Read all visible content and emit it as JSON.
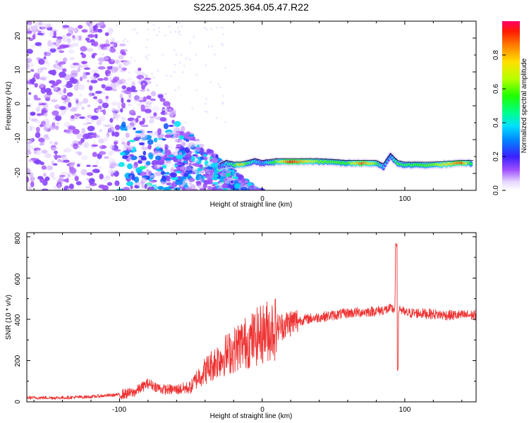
{
  "title": "S225.2025.364.05.47.R22",
  "chart_data": [
    {
      "type": "heatmap",
      "title": "S225.2025.364.05.47.R22",
      "xlabel": "Height of straight line (km)",
      "ylabel": "Frequency (Hz)",
      "xlim": [
        -165,
        150
      ],
      "ylim": [
        -25,
        25
      ],
      "xticks": [
        "-100",
        "0",
        "100"
      ],
      "yticks": [
        "-20",
        "-10",
        "0",
        "10",
        "20"
      ],
      "ridge": {
        "x": [
          -30,
          -25,
          -20,
          -15,
          -10,
          -5,
          0,
          10,
          20,
          40,
          60,
          70,
          80,
          85,
          90,
          95,
          100,
          120,
          140,
          148
        ],
        "y": [
          -18,
          -17,
          -17.5,
          -17.5,
          -17,
          -16.5,
          -17,
          -16.5,
          -16.5,
          -16.5,
          -17,
          -17,
          -17,
          -18,
          -15,
          -17,
          -17.5,
          -17.5,
          -17,
          -17
        ],
        "amp": [
          0.25,
          0.4,
          0.5,
          0.8,
          0.5,
          0.4,
          0.3,
          0.6,
          0.95,
          0.6,
          0.55,
          0.9,
          0.6,
          0.35,
          0.3,
          0.55,
          0.5,
          0.6,
          0.9,
          0.4
        ]
      },
      "colorbar": {
        "label": "Normalized spectral amplitude",
        "ticks": [
          "0.0",
          "0.2",
          "0.4",
          "0.6",
          "0.8"
        ],
        "range": [
          0,
          1
        ]
      }
    },
    {
      "type": "line",
      "xlabel": "Height of straight line (km)",
      "ylabel": "SNR (10 * v/v)",
      "xlim": [
        -165,
        150
      ],
      "ylim": [
        0,
        820
      ],
      "xticks": [
        "-100",
        "0",
        "100"
      ],
      "yticks": [
        "0",
        "200",
        "400",
        "600",
        "800"
      ],
      "series": [
        {
          "name": "SNR",
          "color": "#ee3333",
          "x": [
            -165,
            -140,
            -120,
            -100,
            -90,
            -80,
            -70,
            -60,
            -50,
            -45,
            -40,
            -35,
            -30,
            -25,
            -20,
            -15,
            -10,
            -5,
            0,
            5,
            10,
            15,
            20,
            30,
            40,
            50,
            60,
            70,
            80,
            90,
            93,
            94,
            95,
            96,
            97,
            100,
            110,
            120,
            130,
            140,
            150
          ],
          "y": [
            20,
            20,
            25,
            35,
            45,
            90,
            60,
            60,
            70,
            120,
            150,
            180,
            210,
            230,
            250,
            280,
            290,
            310,
            330,
            350,
            360,
            370,
            385,
            400,
            410,
            420,
            430,
            435,
            440,
            450,
            450,
            790,
            330,
            460,
            450,
            430,
            430,
            425,
            420,
            420,
            420
          ]
        }
      ]
    }
  ]
}
